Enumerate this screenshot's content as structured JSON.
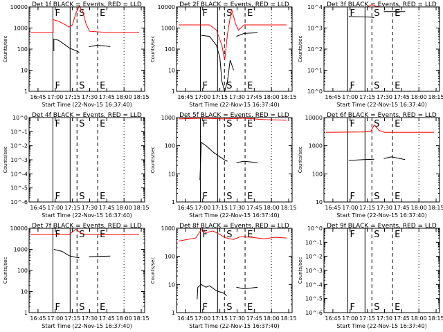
{
  "figure": {
    "xlabel": "Start Time (22-Nov-15 16:37:40)",
    "ylabel": "Counts/sec",
    "x_ticks": [
      "16:45",
      "17:00",
      "17:15",
      "17:30",
      "17:45",
      "18:00",
      "18:15"
    ],
    "colors": {
      "events": "#000000",
      "lld": "#ff0000",
      "axes": "#000000"
    },
    "markers": [
      {
        "letter": "F",
        "time": "16:58",
        "style": "solid"
      },
      {
        "letter": "",
        "time": "17:13",
        "style": "solid"
      },
      {
        "letter": "S",
        "time": "17:19",
        "style": "dashed"
      },
      {
        "letter": "E",
        "time": "17:37",
        "style": "dashed"
      },
      {
        "letter": "",
        "time": "18:00",
        "style": "dotted"
      }
    ]
  },
  "chart_data": [
    {
      "type": "line",
      "title": "Det 1f BLACK = Events, RED = LLD",
      "yscale": "log",
      "yticks": [
        "1",
        "10",
        "100",
        "1000",
        "10000"
      ],
      "ylim": [
        1,
        10000
      ],
      "series": [
        {
          "name": "Events",
          "color": "#000000",
          "segments": [
            [
              [
                16.98,
                80
              ],
              [
                16.98,
                300
              ],
              [
                17.05,
                260
              ],
              [
                17.12,
                180
              ],
              [
                17.21,
                110
              ],
              [
                17.3,
                85
              ],
              [
                17.35,
                70
              ]
            ],
            [
              [
                17.49,
                130
              ],
              [
                17.6,
                150
              ],
              [
                17.75,
                140
              ],
              [
                17.8,
                130
              ]
            ]
          ]
        },
        {
          "name": "LLD",
          "color": "#ff0000",
          "segments": [
            [
              [
                16.65,
                600
              ],
              [
                16.97,
                600
              ],
              [
                16.97,
                2500
              ],
              [
                17.05,
                2100
              ],
              [
                17.15,
                1400
              ],
              [
                17.2,
                1100
              ],
              [
                17.25,
                1400
              ],
              [
                17.3,
                5000
              ],
              [
                17.35,
                11000
              ],
              [
                17.4,
                6000
              ],
              [
                17.45,
                1500
              ],
              [
                17.5,
                700
              ],
              [
                17.8,
                600
              ],
              [
                18.22,
                600
              ]
            ]
          ]
        }
      ]
    },
    {
      "type": "line",
      "title": "Det 2f BLACK = Events, RED = LLD",
      "yscale": "log",
      "yticks": [
        "1",
        "10",
        "100",
        "1000",
        "10000"
      ],
      "ylim": [
        1,
        10000
      ],
      "series": [
        {
          "name": "Events",
          "color": "#000000",
          "segments": [
            [
              [
                16.98,
                450
              ],
              [
                17.1,
                400
              ],
              [
                17.2,
                150
              ],
              [
                17.25,
                40
              ],
              [
                17.28,
                3
              ],
              [
                17.32,
                1
              ],
              [
                17.36,
                3
              ],
              [
                17.4,
                30
              ],
              [
                17.45,
                10
              ]
            ],
            [
              [
                17.49,
                400
              ],
              [
                17.6,
                550
              ],
              [
                17.8,
                600
              ]
            ]
          ]
        },
        {
          "name": "LLD",
          "color": "#ff0000",
          "segments": [
            [
              [
                16.65,
                1400
              ],
              [
                16.97,
                1400
              ],
              [
                17.1,
                1400
              ],
              [
                17.2,
                800
              ],
              [
                17.28,
                150
              ],
              [
                17.32,
                30
              ],
              [
                17.36,
                500
              ],
              [
                17.42,
                8000
              ],
              [
                17.48,
                1500
              ],
              [
                17.52,
                800
              ],
              [
                17.6,
                1400
              ],
              [
                18.22,
                1400
              ]
            ]
          ]
        }
      ]
    },
    {
      "type": "line",
      "title": "Det 3f BLACK = Events, RED = LLD",
      "yscale": "log",
      "yticks": [
        "10^0",
        "10^1",
        "10^2",
        "10^3",
        "10^4"
      ],
      "ylim": [
        1,
        10000
      ],
      "series": [
        {
          "name": "Events",
          "color": "#000000",
          "segments": [
            [
              [
                16.98,
                3500
              ],
              [
                17.3,
                3300
              ],
              [
                17.35,
                3000
              ]
            ],
            [
              [
                17.49,
                6000
              ],
              [
                17.8,
                6000
              ]
            ]
          ]
        },
        {
          "name": "LLD",
          "color": "#ff0000",
          "segments": [
            [
              [
                16.65,
                10000
              ],
              [
                17.25,
                10000
              ],
              [
                17.32,
                13000
              ],
              [
                17.38,
                10500
              ],
              [
                17.45,
                10000
              ],
              [
                18.22,
                10000
              ]
            ]
          ]
        }
      ]
    },
    {
      "type": "line",
      "title": "Det 4f BLACK = Events, RED = LLD",
      "yscale": "log",
      "yticks": [
        "10^-6",
        "10^-5",
        "10^-4",
        "10^-3",
        "10^-2",
        "10^-1",
        "10^0"
      ],
      "ylim": [
        1e-06,
        1
      ],
      "series": []
    },
    {
      "type": "line",
      "title": "Det 5f BLACK = Events, RED = LLD",
      "yscale": "log",
      "yticks": [
        "1",
        "10",
        "100",
        "1000"
      ],
      "ylim": [
        1,
        1000
      ],
      "series": [
        {
          "name": "Events",
          "color": "#000000",
          "segments": [
            [
              [
                16.96,
                6
              ],
              [
                16.98,
                130
              ],
              [
                17.05,
                100
              ],
              [
                17.15,
                60
              ],
              [
                17.25,
                40
              ],
              [
                17.33,
                30
              ],
              [
                17.36,
                28
              ]
            ],
            [
              [
                17.49,
                25
              ],
              [
                17.6,
                28
              ],
              [
                17.8,
                25
              ]
            ]
          ]
        },
        {
          "name": "LLD",
          "color": "#ff0000",
          "segments": [
            [
              [
                16.65,
                900
              ],
              [
                17.0,
                950
              ],
              [
                17.3,
                900
              ],
              [
                17.6,
                950
              ],
              [
                17.9,
                850
              ],
              [
                18.22,
                800
              ]
            ]
          ]
        }
      ]
    },
    {
      "type": "line",
      "title": "Det 6f BLACK = Events, RED = LLD",
      "yscale": "log",
      "yticks": [
        "10",
        "100",
        "1000",
        "10000"
      ],
      "ylim": [
        10,
        10000
      ],
      "series": [
        {
          "name": "Events",
          "color": "#000000",
          "segments": [
            [
              [
                16.98,
                300
              ],
              [
                17.2,
                320
              ],
              [
                17.35,
                330
              ]
            ],
            [
              [
                17.49,
                350
              ],
              [
                17.6,
                400
              ],
              [
                17.8,
                320
              ]
            ]
          ]
        },
        {
          "name": "LLD",
          "color": "#ff0000",
          "segments": [
            [
              [
                16.65,
                3000
              ],
              [
                17.2,
                3100
              ],
              [
                17.3,
                3200
              ],
              [
                17.35,
                5500
              ],
              [
                17.42,
                3500
              ],
              [
                17.5,
                3000
              ],
              [
                18.22,
                3000
              ]
            ]
          ]
        }
      ]
    },
    {
      "type": "line",
      "title": "Det 7f BLACK = Events, RED = LLD",
      "yscale": "log",
      "yticks": [
        "1",
        "10",
        "100",
        "1000",
        "10000"
      ],
      "ylim": [
        1,
        10000
      ],
      "series": [
        {
          "name": "Events",
          "color": "#000000",
          "segments": [
            [
              [
                16.98,
                1000
              ],
              [
                17.1,
                800
              ],
              [
                17.2,
                500
              ],
              [
                17.3,
                420
              ],
              [
                17.35,
                400
              ]
            ],
            [
              [
                17.49,
                450
              ],
              [
                17.8,
                480
              ]
            ]
          ]
        },
        {
          "name": "LLD",
          "color": "#ff0000",
          "segments": [
            [
              [
                16.65,
                5000
              ],
              [
                16.97,
                5200
              ],
              [
                17.2,
                5000
              ],
              [
                17.3,
                9000
              ],
              [
                17.37,
                6000
              ],
              [
                17.45,
                5000
              ],
              [
                18.22,
                5000
              ]
            ]
          ]
        }
      ]
    },
    {
      "type": "line",
      "title": "Det 8f BLACK = Events, RED = LLD",
      "yscale": "log",
      "yticks": [
        "1",
        "10",
        "100",
        "1000"
      ],
      "ylim": [
        1,
        1000
      ],
      "series": [
        {
          "name": "Events",
          "color": "#000000",
          "segments": [
            [
              [
                16.92,
                3
              ],
              [
                16.93,
                8
              ],
              [
                16.98,
                10
              ],
              [
                17.05,
                8
              ],
              [
                17.1,
                9
              ],
              [
                17.2,
                6
              ],
              [
                17.3,
                5
              ],
              [
                17.35,
                4
              ]
            ],
            [
              [
                17.49,
                8
              ],
              [
                17.6,
                7
              ],
              [
                17.8,
                8
              ]
            ]
          ]
        },
        {
          "name": "LLD",
          "color": "#ff0000",
          "segments": [
            [
              [
                16.65,
                350
              ],
              [
                16.9,
                450
              ],
              [
                16.98,
                900
              ],
              [
                17.05,
                700
              ],
              [
                17.15,
                800
              ],
              [
                17.25,
                600
              ],
              [
                17.3,
                500
              ],
              [
                17.35,
                450
              ],
              [
                17.45,
                400
              ],
              [
                17.55,
                500
              ],
              [
                17.7,
                480
              ],
              [
                17.9,
                420
              ],
              [
                18.05,
                480
              ],
              [
                18.22,
                450
              ]
            ]
          ]
        }
      ]
    },
    {
      "type": "line",
      "title": "Det 9f BLACK = Events, RED = LLD",
      "yscale": "log",
      "yticks": [
        "10^-6",
        "10^-5",
        "10^-4",
        "10^-3",
        "10^-2",
        "10^-1",
        "10^0"
      ],
      "ylim": [
        1e-06,
        1
      ],
      "series": []
    }
  ]
}
